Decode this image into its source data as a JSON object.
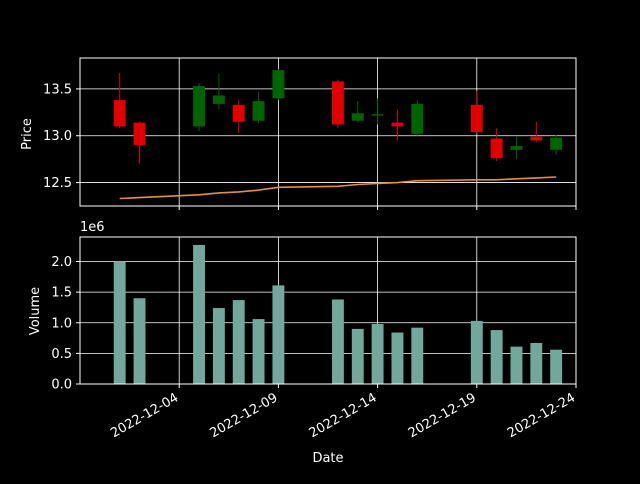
{
  "chart_data": [
    {
      "type": "candlestick",
      "ylabel": "Price",
      "ylim": [
        12.25,
        13.83
      ],
      "yticks": [
        "12.5",
        "13.0",
        "13.5"
      ],
      "ytick_values": [
        12.5,
        13.0,
        13.5
      ],
      "grid": true,
      "colors": {
        "up": "#006400",
        "down": "#e00000",
        "line": "#e8922a",
        "grid": "#ffffff",
        "axes": "#ffffff",
        "background": "#000000"
      },
      "candles": [
        {
          "date": "2022-12-01",
          "open": 13.38,
          "high": 13.67,
          "low": 13.08,
          "close": 13.1
        },
        {
          "date": "2022-12-02",
          "open": 13.14,
          "high": 13.15,
          "low": 12.7,
          "close": 12.9
        },
        {
          "date": "2022-12-05",
          "open": 13.1,
          "high": 13.56,
          "low": 13.05,
          "close": 13.53
        },
        {
          "date": "2022-12-06",
          "open": 13.34,
          "high": 13.66,
          "low": 13.28,
          "close": 13.43
        },
        {
          "date": "2022-12-07",
          "open": 13.33,
          "high": 13.38,
          "low": 13.03,
          "close": 13.15
        },
        {
          "date": "2022-12-08",
          "open": 13.16,
          "high": 13.47,
          "low": 13.13,
          "close": 13.37
        },
        {
          "date": "2022-12-09",
          "open": 13.4,
          "high": 13.71,
          "low": 13.38,
          "close": 13.7
        },
        {
          "date": "2022-12-12",
          "open": 13.58,
          "high": 13.6,
          "low": 13.08,
          "close": 13.12
        },
        {
          "date": "2022-12-13",
          "open": 13.16,
          "high": 13.37,
          "low": 13.15,
          "close": 13.24
        },
        {
          "date": "2022-12-14",
          "open": 13.22,
          "high": 13.4,
          "low": 13.12,
          "close": 13.23
        },
        {
          "date": "2022-12-15",
          "open": 13.14,
          "high": 13.28,
          "low": 12.95,
          "close": 13.1
        },
        {
          "date": "2022-12-16",
          "open": 13.02,
          "high": 13.38,
          "low": 13.0,
          "close": 13.34
        },
        {
          "date": "2022-12-19",
          "open": 13.33,
          "high": 13.48,
          "low": 13.02,
          "close": 13.04
        },
        {
          "date": "2022-12-20",
          "open": 12.97,
          "high": 13.08,
          "low": 12.73,
          "close": 12.76
        },
        {
          "date": "2022-12-21",
          "open": 12.85,
          "high": 12.99,
          "low": 12.75,
          "close": 12.89
        },
        {
          "date": "2022-12-22",
          "open": 12.99,
          "high": 13.15,
          "low": 12.93,
          "close": 12.95
        },
        {
          "date": "2022-12-23",
          "open": 12.85,
          "high": 13.01,
          "low": 12.8,
          "close": 12.98
        }
      ],
      "line": [
        {
          "date": "2022-12-01",
          "value": 12.33
        },
        {
          "date": "2022-12-02",
          "value": 12.34
        },
        {
          "date": "2022-12-05",
          "value": 12.37
        },
        {
          "date": "2022-12-06",
          "value": 12.39
        },
        {
          "date": "2022-12-07",
          "value": 12.4
        },
        {
          "date": "2022-12-08",
          "value": 12.42
        },
        {
          "date": "2022-12-09",
          "value": 12.45
        },
        {
          "date": "2022-12-12",
          "value": 12.46
        },
        {
          "date": "2022-12-13",
          "value": 12.48
        },
        {
          "date": "2022-12-14",
          "value": 12.49
        },
        {
          "date": "2022-12-15",
          "value": 12.5
        },
        {
          "date": "2022-12-16",
          "value": 12.52
        },
        {
          "date": "2022-12-19",
          "value": 12.53
        },
        {
          "date": "2022-12-20",
          "value": 12.53
        },
        {
          "date": "2022-12-21",
          "value": 12.54
        },
        {
          "date": "2022-12-22",
          "value": 12.55
        },
        {
          "date": "2022-12-23",
          "value": 12.56
        }
      ]
    },
    {
      "type": "bar",
      "ylabel": "Volume",
      "xlabel": "Date",
      "offset_text": "1e6",
      "ylim": [
        0,
        2.4
      ],
      "yticks": [
        "0.0",
        "0.5",
        "1.0",
        "1.5",
        "2.0"
      ],
      "ytick_values": [
        0,
        0.5,
        1.0,
        1.5,
        2.0
      ],
      "grid": true,
      "colors": {
        "bar": "#72a89c"
      },
      "bars": [
        {
          "date": "2022-12-01",
          "value": 2.0
        },
        {
          "date": "2022-12-02",
          "value": 1.4
        },
        {
          "date": "2022-12-05",
          "value": 2.27
        },
        {
          "date": "2022-12-06",
          "value": 1.24
        },
        {
          "date": "2022-12-07",
          "value": 1.37
        },
        {
          "date": "2022-12-08",
          "value": 1.06
        },
        {
          "date": "2022-12-09",
          "value": 1.61
        },
        {
          "date": "2022-12-12",
          "value": 1.38
        },
        {
          "date": "2022-12-13",
          "value": 0.9
        },
        {
          "date": "2022-12-14",
          "value": 0.98
        },
        {
          "date": "2022-12-15",
          "value": 0.84
        },
        {
          "date": "2022-12-16",
          "value": 0.92
        },
        {
          "date": "2022-12-19",
          "value": 1.03
        },
        {
          "date": "2022-12-20",
          "value": 0.88
        },
        {
          "date": "2022-12-21",
          "value": 0.61
        },
        {
          "date": "2022-12-22",
          "value": 0.67
        },
        {
          "date": "2022-12-23",
          "value": 0.56
        }
      ]
    }
  ],
  "x_axis": {
    "label": "Date",
    "range": [
      "2022-11-29",
      "2022-12-24"
    ],
    "ticks": [
      "2022-12-04",
      "2022-12-09",
      "2022-12-14",
      "2022-12-19",
      "2022-12-24"
    ]
  }
}
